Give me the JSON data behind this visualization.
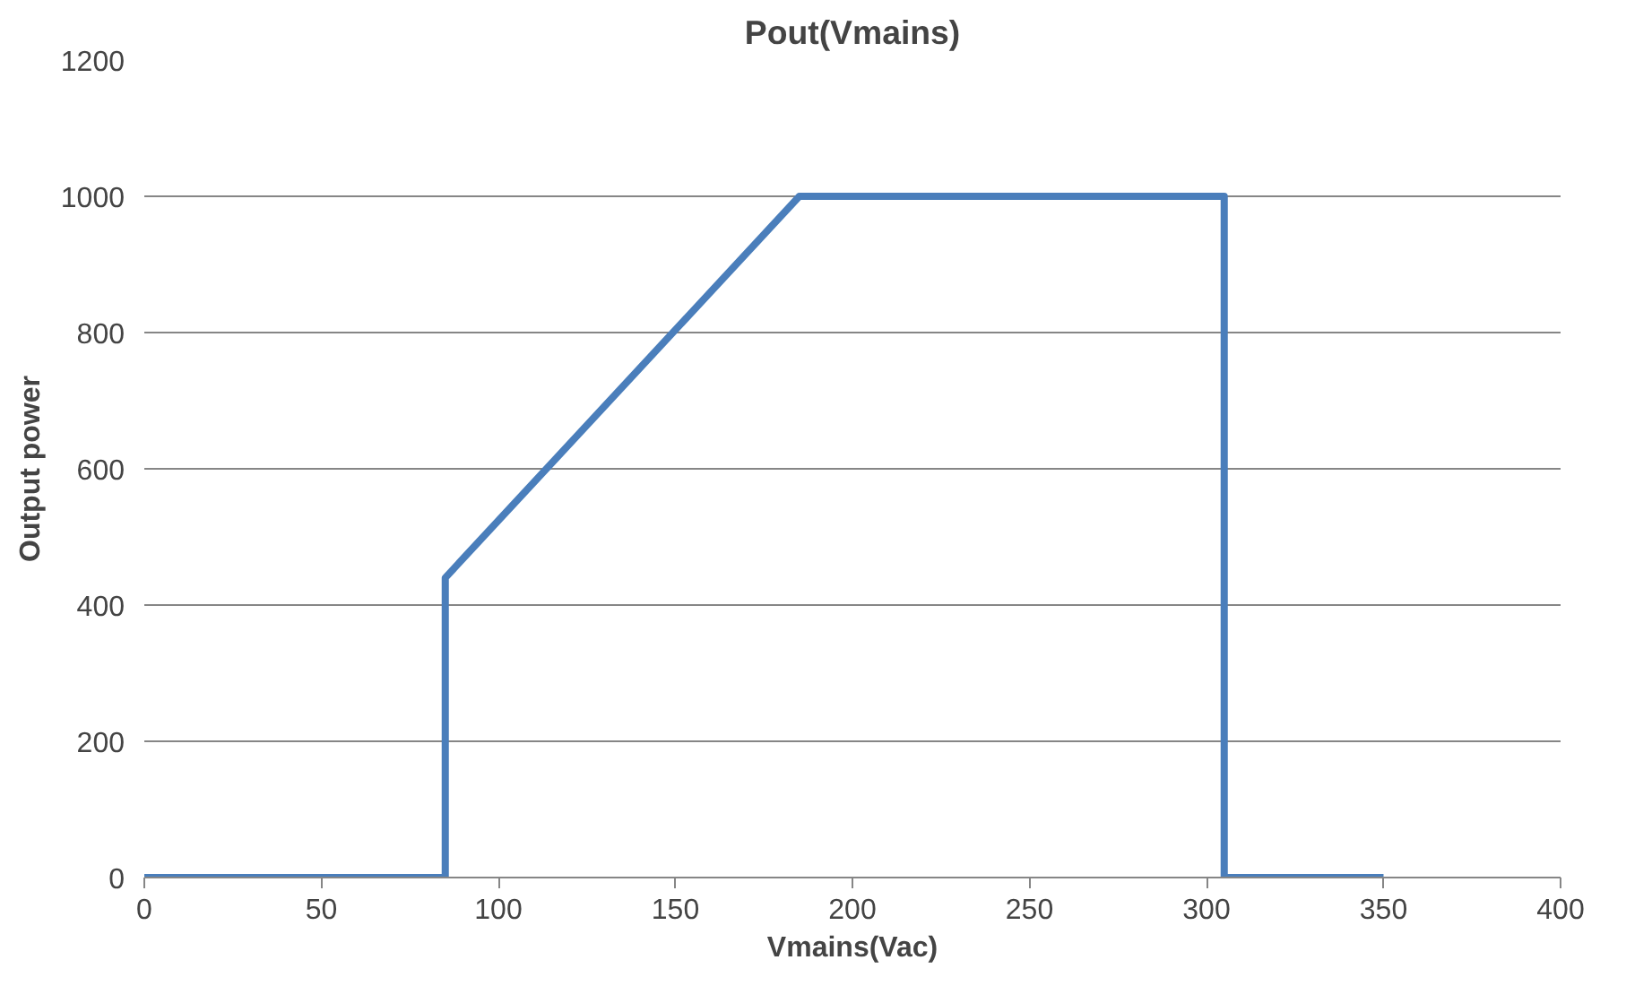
{
  "chart_data": {
    "type": "line",
    "title": "Pout(Vmains)",
    "xlabel": "Vmains(Vac)",
    "ylabel": "Output power",
    "x": [
      0,
      85,
      85,
      185,
      305,
      305,
      350
    ],
    "series": [
      {
        "color": "#4a7ebb",
        "values": [
          0,
          0,
          440,
          1000,
          1000,
          0,
          0
        ]
      }
    ],
    "xlim": [
      0,
      400
    ],
    "xticks": [
      0,
      50,
      100,
      150,
      200,
      250,
      300,
      350,
      400
    ],
    "ylim": [
      0,
      1200
    ],
    "yticks": [
      0,
      200,
      400,
      600,
      800,
      1000,
      1200
    ],
    "grid": "y",
    "marker": "none",
    "line_style": "solid"
  }
}
